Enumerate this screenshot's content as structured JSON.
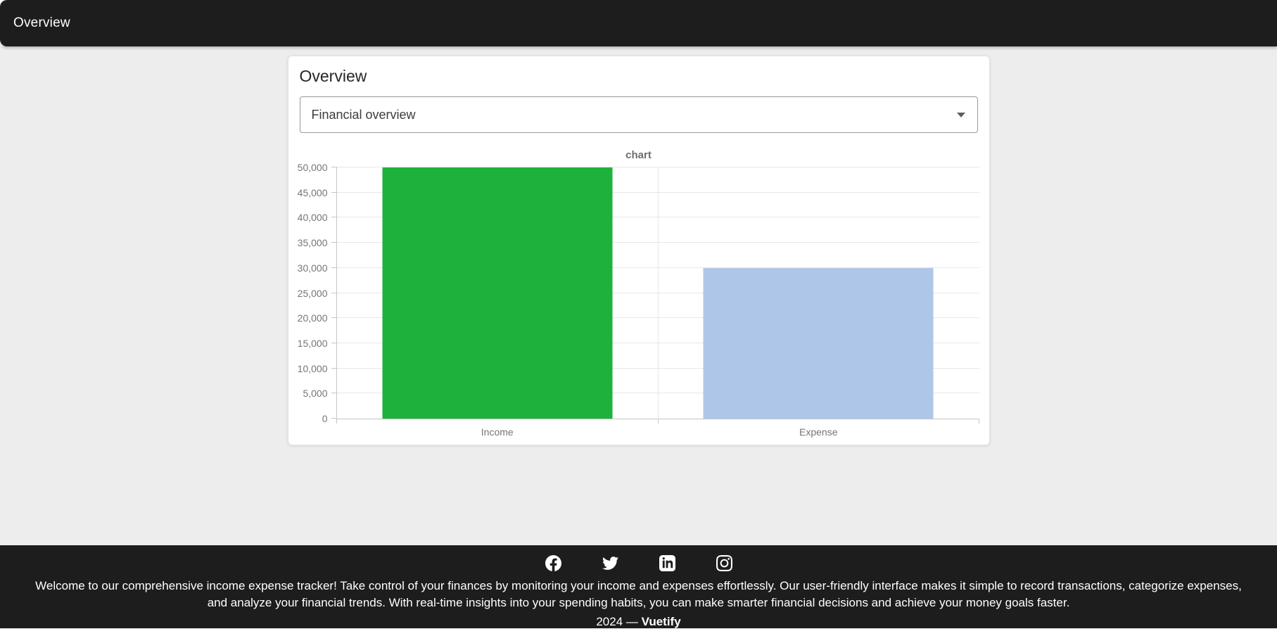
{
  "app_bar": {
    "title": "Overview"
  },
  "card": {
    "title": "Overview",
    "select": {
      "value": "Financial overview",
      "icon": "chevron-down-icon"
    }
  },
  "chart_data": {
    "type": "bar",
    "title": "chart",
    "categories": [
      "Income",
      "Expense"
    ],
    "values": [
      50000,
      30000
    ],
    "bar_colors": [
      "#1eb23c",
      "#aec7e8"
    ],
    "ylim": [
      0,
      50000
    ],
    "ytick_step": 5000,
    "ytick_labels": [
      "0",
      "5,000",
      "10,000",
      "15,000",
      "20,000",
      "25,000",
      "30,000",
      "35,000",
      "40,000",
      "45,000",
      "50,000"
    ],
    "grid": true,
    "legend": "none",
    "xlabel": "",
    "ylabel": ""
  },
  "footer": {
    "social_icons": [
      "facebook-icon",
      "twitter-icon",
      "linkedin-icon",
      "instagram-icon"
    ],
    "description": "Welcome to our comprehensive income expense tracker! Take control of your finances by monitoring your income and expenses effortlessly. Our user-friendly interface makes it simple to record transactions, categorize expenses, and analyze your financial trends. With real-time insights into your spending habits, you can make smarter financial decisions and achieve your money goals faster.",
    "year": "2024",
    "separator": "—",
    "brand": "Vuetify"
  },
  "colors": {
    "app_bar_bg": "#1d1d1e",
    "page_bg": "#ededee",
    "card_bg": "#ffffff",
    "income_bar": "#1eb23c",
    "expense_bar": "#aec7e8",
    "grid_line": "#e7e7e7",
    "axis_line": "#c6c6c6",
    "axis_text": "#757575",
    "footer_bg": "#1d1d1e"
  }
}
